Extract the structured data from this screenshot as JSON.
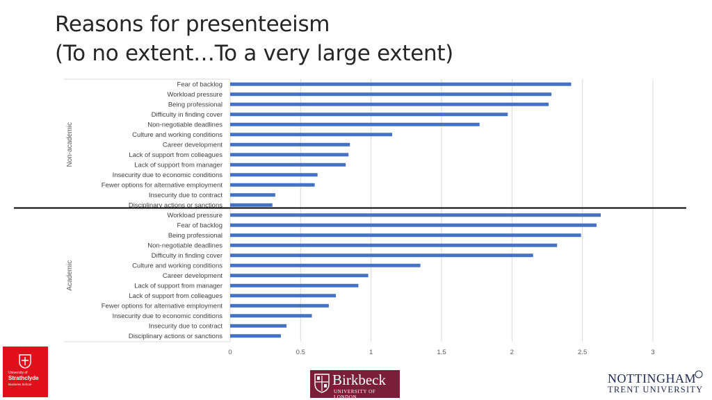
{
  "title": {
    "line1": "Reasons for presenteeism",
    "line2": "(To no extent…To a very large extent)"
  },
  "chart_data": {
    "type": "bar",
    "orientation": "horizontal",
    "bar_color": "#4472c4",
    "xlim": [
      0,
      3
    ],
    "xticks": [
      "0",
      "0.5",
      "1",
      "1.5",
      "2",
      "2.5",
      "3"
    ],
    "grid": true,
    "groups": [
      {
        "name": "Non-academic",
        "categories": [
          "Fear of backlog",
          "Workload pressure",
          "Being professional",
          "Difficulty in finding cover",
          "Non-negotiable deadlines",
          "Culture and working conditions",
          "Career development",
          "Lack of support from colleagues",
          "Lack of support from manager",
          "Insecurity due to economic conditions",
          "Fewer options for alternative employment",
          "Insecurity due to contract",
          "Disciplinary actions or sanctions"
        ],
        "values": [
          2.42,
          2.28,
          2.26,
          1.97,
          1.77,
          1.15,
          0.85,
          0.84,
          0.82,
          0.62,
          0.6,
          0.32,
          0.3
        ]
      },
      {
        "name": "Academic",
        "categories": [
          "Workload pressure",
          "Fear of backlog",
          "Being professional",
          "Non-negotiable deadlines",
          "Difficulty in finding cover",
          "Culture and working conditions",
          "Career development",
          "Lack of support from manager",
          "Lack of support from colleagues",
          "Fewer options for alternative employment",
          "Insecurity due to economic conditions",
          "Insecurity due to contract",
          "Disciplinary actions or sanctions"
        ],
        "values": [
          2.63,
          2.6,
          2.49,
          2.32,
          2.15,
          1.35,
          0.98,
          0.91,
          0.75,
          0.7,
          0.58,
          0.4,
          0.36
        ]
      }
    ]
  },
  "logos": {
    "strathclyde": {
      "line1": "University of",
      "line2": "Strathclyde",
      "line3": "Business School",
      "color": "#e10f1b"
    },
    "birkbeck": {
      "name": "Birkbeck",
      "sub": "UNIVERSITY OF LONDON",
      "color": "#7a1f3a"
    },
    "ntu": {
      "line1": "NOTTINGHAM",
      "line2": "TRENT UNIVERSITY",
      "color": "#1d2a4e"
    }
  }
}
